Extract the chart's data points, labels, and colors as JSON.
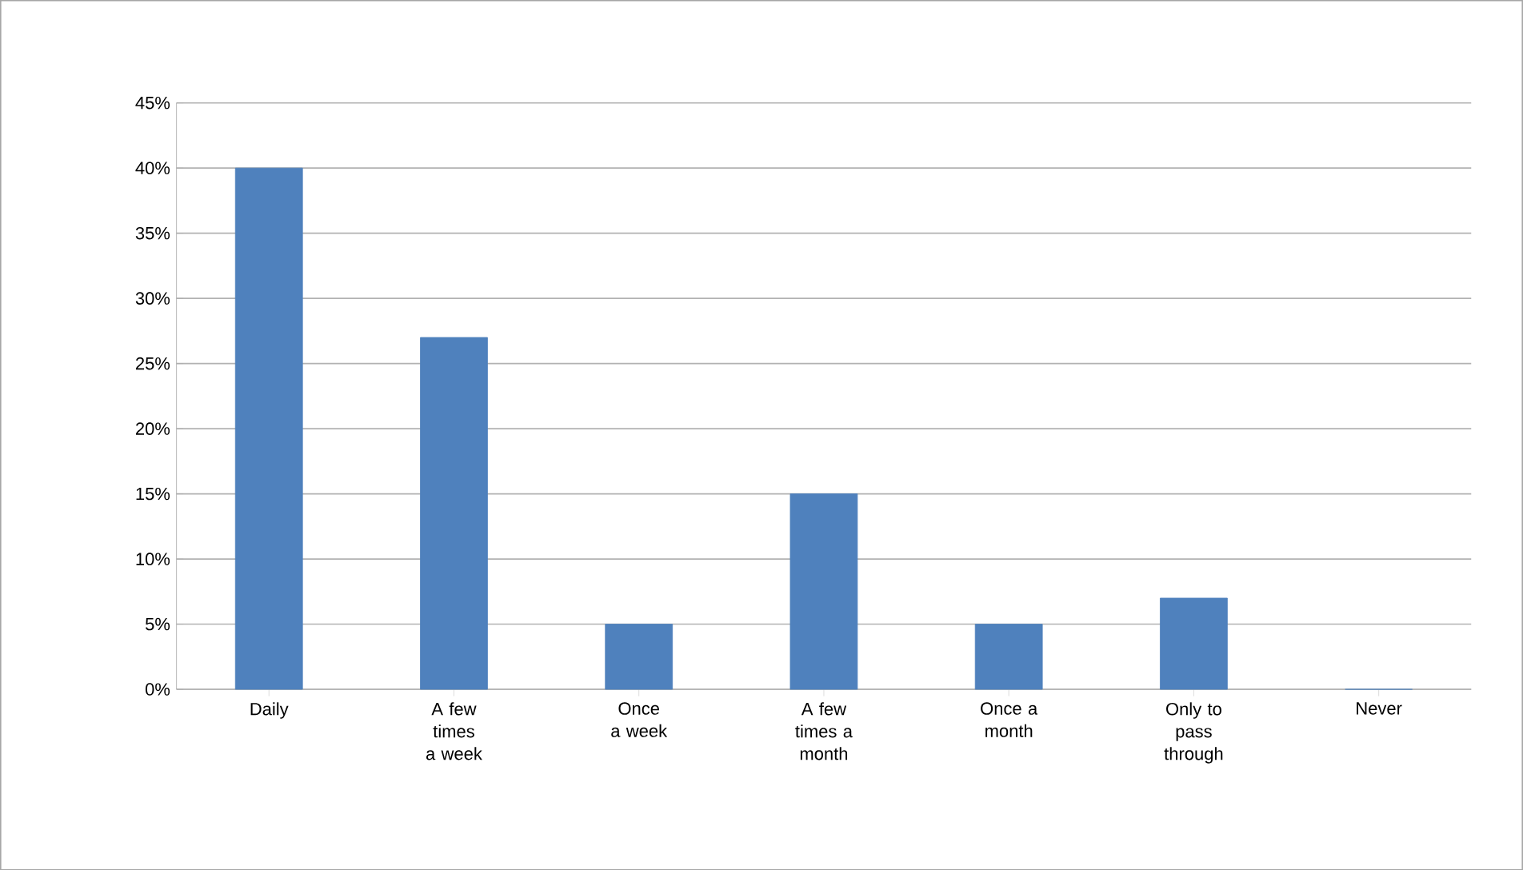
{
  "chart_data": {
    "type": "bar",
    "categories": [
      "Daily",
      "A few times a week",
      "Once a week",
      "A few times a month",
      "Once a month",
      "Only to pass through",
      "Never"
    ],
    "values": [
      40,
      27,
      5,
      15,
      5,
      7,
      0
    ],
    "color": "#4f81bd",
    "ylim": [
      0,
      45
    ],
    "yticks": [
      {
        "value": 0,
        "label": "0%"
      },
      {
        "value": 5,
        "label": "5%"
      },
      {
        "value": 10,
        "label": "10%"
      },
      {
        "value": 15,
        "label": "15%"
      },
      {
        "value": 20,
        "label": "20%"
      },
      {
        "value": 25,
        "label": "25%"
      },
      {
        "value": 30,
        "label": "30%"
      },
      {
        "value": 35,
        "label": "35%"
      },
      {
        "value": 40,
        "label": "40%"
      },
      {
        "value": 45,
        "label": "45%"
      }
    ],
    "grid": "y"
  }
}
